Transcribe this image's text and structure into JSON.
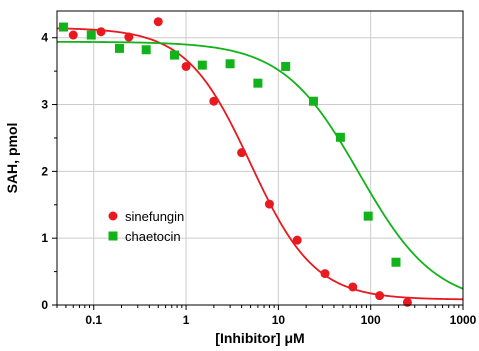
{
  "chart_data": {
    "type": "scatter",
    "title": "",
    "xlabel": "[Inhibitor] μM",
    "ylabel": "SAH, pmol",
    "x_scale": "log",
    "xlim": [
      0.04,
      1000
    ],
    "ylim": [
      0,
      4.4
    ],
    "x_ticks": [
      0.1,
      1,
      10,
      100,
      1000
    ],
    "x_tick_labels": [
      "0.1",
      "1",
      "10",
      "100",
      "1000"
    ],
    "y_ticks": [
      0,
      1,
      2,
      3,
      4
    ],
    "y_tick_labels": [
      "0",
      "1",
      "2",
      "3",
      "4"
    ],
    "grid": "horizontal-and-vertical",
    "legend_position": "lower-left",
    "series": [
      {
        "name": "sinefungin",
        "marker": "circle",
        "color": "#e8191f",
        "points": [
          [
            0.06,
            4.04
          ],
          [
            0.12,
            4.09
          ],
          [
            0.24,
            4.01
          ],
          [
            0.5,
            4.24
          ],
          [
            1.0,
            3.57
          ],
          [
            2.0,
            3.05
          ],
          [
            4.0,
            2.28
          ],
          [
            8.0,
            1.51
          ],
          [
            16.0,
            0.97
          ],
          [
            32.0,
            0.47
          ],
          [
            64.0,
            0.27
          ],
          [
            125.0,
            0.14
          ],
          [
            250.0,
            0.04
          ]
        ],
        "fit": {
          "top": 4.15,
          "bottom": 0.08,
          "ic50": 5.0,
          "hill": 1.25
        }
      },
      {
        "name": "chaetocin",
        "marker": "square",
        "color": "#12b31a",
        "points": [
          [
            0.047,
            4.16
          ],
          [
            0.094,
            4.04
          ],
          [
            0.19,
            3.84
          ],
          [
            0.37,
            3.82
          ],
          [
            0.75,
            3.74
          ],
          [
            1.5,
            3.59
          ],
          [
            3.0,
            3.61
          ],
          [
            6.0,
            3.32
          ],
          [
            12.0,
            3.57
          ],
          [
            24.0,
            3.05
          ],
          [
            47.0,
            2.51
          ],
          [
            94.0,
            1.33
          ],
          [
            188.0,
            0.64
          ]
        ],
        "fit": {
          "top": 3.94,
          "bottom": 0.0,
          "ic50": 75.0,
          "hill": 1.05
        }
      }
    ]
  }
}
